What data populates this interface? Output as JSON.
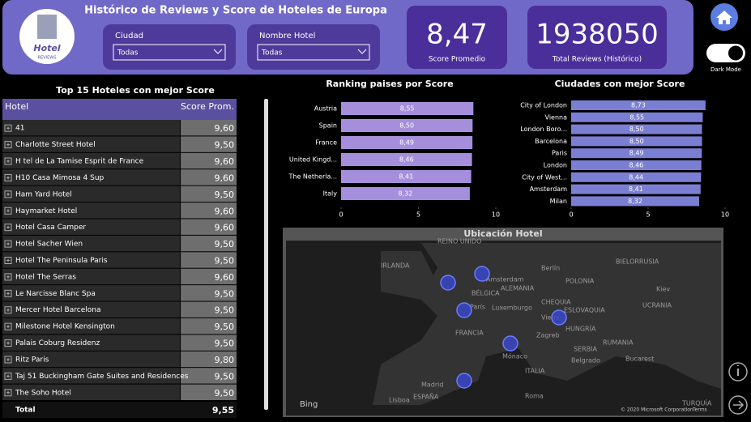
{
  "header": {
    "title": "Histórico de Reviews y Score de Hoteles de Europa",
    "logo_text": "Hotel",
    "logo_subtext": "REVIEWS"
  },
  "filters": [
    {
      "label": "Ciudad",
      "value": "Todas"
    },
    {
      "label": "Nombre Hotel",
      "value": "Todas"
    }
  ],
  "kpis": [
    {
      "value": "8,47",
      "label": "Score Promedio"
    },
    {
      "value": "1938050",
      "label": "Total Reviews (Histórico)"
    }
  ],
  "toggle": {
    "label": "Dark Mode"
  },
  "table": {
    "title": "Top 15 Hoteles con mejor Score",
    "columns": [
      "Hotel",
      "Score Prom."
    ],
    "rows": [
      [
        "41",
        "9,60"
      ],
      [
        "Charlotte Street Hotel",
        "9,50"
      ],
      [
        "H tel de La Tamise Esprit de France",
        "9,60"
      ],
      [
        "H10 Casa Mimosa 4 Sup",
        "9,60"
      ],
      [
        "Ham Yard Hotel",
        "9,50"
      ],
      [
        "Haymarket Hotel",
        "9,60"
      ],
      [
        "Hotel Casa Camper",
        "9,60"
      ],
      [
        "Hotel Sacher Wien",
        "9,50"
      ],
      [
        "Hotel The Peninsula Paris",
        "9,50"
      ],
      [
        "Hotel The Serras",
        "9,60"
      ],
      [
        "Le Narcisse Blanc Spa",
        "9,50"
      ],
      [
        "Mercer Hotel Barcelona",
        "9,50"
      ],
      [
        "Milestone Hotel Kensington",
        "9,50"
      ],
      [
        "Palais Coburg Residenz",
        "9,50"
      ],
      [
        "Ritz Paris",
        "9,80"
      ],
      [
        "Taj 51 Buckingham Gate Suites and Residences",
        "9,50"
      ],
      [
        "The Soho Hotel",
        "9,50"
      ]
    ],
    "total": [
      "Total",
      "9,55"
    ]
  },
  "chart_data": [
    {
      "type": "bar",
      "orientation": "horizontal",
      "title": "Ranking paises por Score",
      "categories": [
        "Austria",
        "Spain",
        "France",
        "United Kingd...",
        "The Netherla...",
        "Italy"
      ],
      "values": [
        8.55,
        8.5,
        8.49,
        8.46,
        8.41,
        8.32
      ],
      "value_labels": [
        "8,55",
        "8,50",
        "8,49",
        "8,46",
        "8,41",
        "8,32"
      ],
      "color": "#a58fdc",
      "xlim": [
        0,
        10
      ],
      "xticks": [
        0,
        5,
        10
      ]
    },
    {
      "type": "bar",
      "orientation": "horizontal",
      "title": "Ciudades con mejor Score",
      "categories": [
        "City of London",
        "Vienna",
        "London Boro...",
        "Barcelona",
        "Paris",
        "London",
        "City of West...",
        "Amsterdam",
        "Milan"
      ],
      "values": [
        8.73,
        8.55,
        8.5,
        8.5,
        8.49,
        8.46,
        8.44,
        8.41,
        8.32
      ],
      "value_labels": [
        "8,73",
        "8,55",
        "8,50",
        "8,50",
        "8,49",
        "8,46",
        "8,44",
        "8,41",
        "8,32"
      ],
      "color": "#7b7fd4",
      "xlim": [
        0,
        10
      ],
      "xticks": [
        0,
        5,
        10
      ]
    }
  ],
  "map": {
    "title": "Ubicación Hotel",
    "labels": [
      "REINO UNIDO",
      "IRLANDA",
      "Ámsterdam",
      "BÉLGICA",
      "Berlín",
      "POLONIA",
      "BIELORRUSIA",
      "ALEMANIA",
      "Luxemburgo",
      "París",
      "CHEQUIA",
      "ESLOVAQUIA",
      "Viena",
      "Kiev",
      "UCRANIA",
      "FRANCIA",
      "Zagreb",
      "HUNGRÍA",
      "RUMANIA",
      "Mónaco",
      "SERBIA",
      "Belgrado",
      "Bucarest",
      "ITALIA",
      "Roma",
      "ESPAÑA",
      "Madrid",
      "Lisboa",
      "TURQUÍA"
    ],
    "brand": "Bing",
    "attribution": "© 2020 Microsoft Corporation",
    "terms": "Terms"
  }
}
